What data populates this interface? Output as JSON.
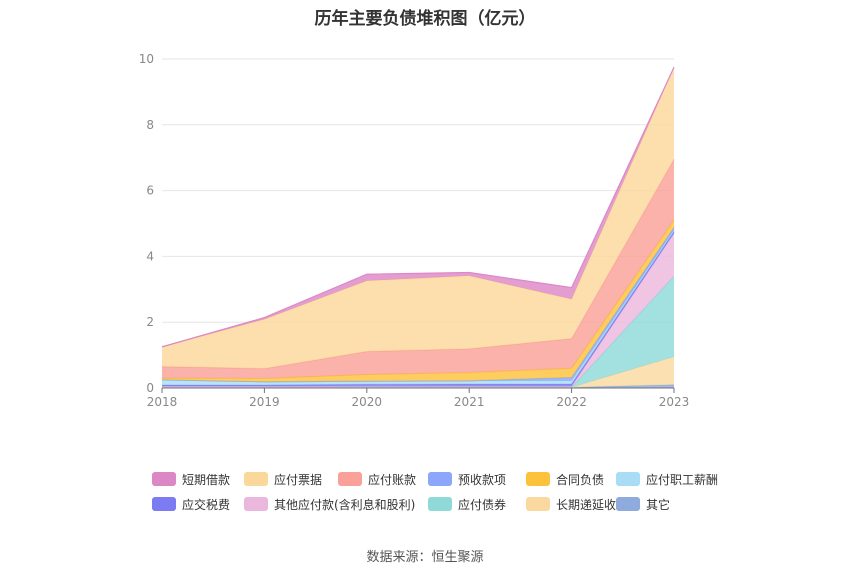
{
  "chart_data": {
    "type": "area",
    "stacked": true,
    "title": "历年主要负债堆积图（亿元）",
    "categories": [
      "2018",
      "2019",
      "2020",
      "2021",
      "2022",
      "2023"
    ],
    "ylim": [
      0,
      10
    ],
    "yticks": [
      0,
      2,
      4,
      6,
      8,
      10
    ],
    "grid": true,
    "legend_position": "bottom",
    "series": [
      {
        "name": "其它",
        "color": "#8FAADC",
        "values": [
          0.02,
          0.02,
          0.02,
          0.02,
          0.02,
          0.1
        ]
      },
      {
        "name": "长期递延收益",
        "color": "#FAD9A1",
        "values": [
          0,
          0,
          0,
          0,
          0,
          0.85
        ]
      },
      {
        "name": "应付债券",
        "color": "#8FD9D9",
        "values": [
          0,
          0,
          0,
          0,
          0,
          2.45
        ]
      },
      {
        "name": "其他应付款(含利息和股利)",
        "color": "#EBB8DD",
        "values": [
          0.03,
          0.03,
          0.03,
          0.03,
          0.03,
          1.3
        ]
      },
      {
        "name": "应交税费",
        "color": "#7B7BF2",
        "values": [
          0.04,
          0.04,
          0.06,
          0.07,
          0.07,
          0.06
        ]
      },
      {
        "name": "应付职工薪酬",
        "color": "#A9DDF5",
        "values": [
          0.16,
          0.1,
          0.1,
          0.1,
          0.1,
          0.04
        ]
      },
      {
        "name": "预收款项",
        "color": "#8BA6FA",
        "values": [
          0,
          0,
          0,
          0,
          0.1,
          0.08
        ]
      },
      {
        "name": "合同负债",
        "color": "#FCC23C",
        "values": [
          0.05,
          0.1,
          0.2,
          0.25,
          0.28,
          0.22
        ]
      },
      {
        "name": "应付账款",
        "color": "#F9A199",
        "values": [
          0.35,
          0.3,
          0.7,
          0.72,
          0.9,
          1.85
        ]
      },
      {
        "name": "应付票据",
        "color": "#FBD89A",
        "values": [
          0.6,
          1.5,
          2.15,
          2.22,
          1.2,
          2.8
        ]
      },
      {
        "name": "短期借款",
        "color": "#DD88C6",
        "values": [
          0,
          0.05,
          0.2,
          0.1,
          0.35,
          0
        ]
      }
    ],
    "legend_order": [
      "短期借款",
      "应付票据",
      "应付账款",
      "预收款项",
      "合同负债",
      "应付职工薪酬",
      "应交税费",
      "其他应付款(含利息和股利)",
      "应付债券",
      "长期递延收益",
      "其它"
    ]
  },
  "source_text": "数据来源：恒生聚源"
}
